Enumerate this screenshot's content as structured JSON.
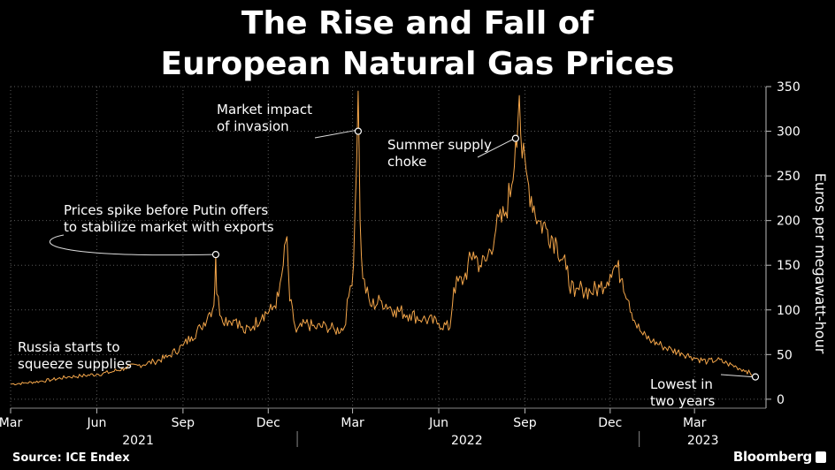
{
  "header": {
    "title_line1": "The Rise and Fall of",
    "title_line2": "European Natural Gas Prices"
  },
  "footer": {
    "source": "Source: ICE Endex",
    "brand": "Bloomberg"
  },
  "colors": {
    "background": "#000000",
    "series": "#f4a64a",
    "grid": "#5a5a5a",
    "text": "#ffffff"
  },
  "chart_data": {
    "type": "line",
    "ylabel": "Euros per megawatt-hour",
    "ylim": [
      -10,
      350
    ],
    "yticks": [
      0,
      50,
      100,
      150,
      200,
      250,
      300,
      350
    ],
    "xlim": [
      "2021-03-01",
      "2023-05-05"
    ],
    "month_ticks": [
      {
        "label": "Mar",
        "date": "2021-03-01"
      },
      {
        "label": "Jun",
        "date": "2021-06-01"
      },
      {
        "label": "Sep",
        "date": "2021-09-01"
      },
      {
        "label": "Dec",
        "date": "2021-12-01"
      },
      {
        "label": "Mar",
        "date": "2022-03-01"
      },
      {
        "label": "Jun",
        "date": "2022-06-01"
      },
      {
        "label": "Sep",
        "date": "2022-09-01"
      },
      {
        "label": "Dec",
        "date": "2022-12-01"
      },
      {
        "label": "Mar",
        "date": "2023-03-01"
      }
    ],
    "year_labels": [
      {
        "label": "2021",
        "date": "2021-07-15"
      },
      {
        "label": "2022",
        "date": "2022-07-01"
      },
      {
        "label": "2023",
        "date": "2023-03-10"
      }
    ],
    "year_separators": [
      "2022-01-01",
      "2023-01-01"
    ],
    "series": [
      {
        "values": [
          [
            "2021-03-01",
            17
          ],
          [
            "2021-03-15",
            18
          ],
          [
            "2021-04-01",
            20
          ],
          [
            "2021-04-15",
            22
          ],
          [
            "2021-05-01",
            25
          ],
          [
            "2021-05-15",
            26
          ],
          [
            "2021-06-01",
            28
          ],
          [
            "2021-06-15",
            30
          ],
          [
            "2021-07-01",
            35
          ],
          [
            "2021-07-15",
            38
          ],
          [
            "2021-08-01",
            42
          ],
          [
            "2021-08-15",
            47
          ],
          [
            "2021-09-01",
            60
          ],
          [
            "2021-09-10",
            70
          ],
          [
            "2021-09-20",
            80
          ],
          [
            "2021-09-28",
            95
          ],
          [
            "2021-10-04",
            105
          ],
          [
            "2021-10-06",
            162
          ],
          [
            "2021-10-07",
            118
          ],
          [
            "2021-10-12",
            92
          ],
          [
            "2021-10-20",
            88
          ],
          [
            "2021-10-28",
            90
          ],
          [
            "2021-11-05",
            75
          ],
          [
            "2021-11-15",
            82
          ],
          [
            "2021-11-25",
            95
          ],
          [
            "2021-12-05",
            100
          ],
          [
            "2021-12-12",
            115
          ],
          [
            "2021-12-17",
            150
          ],
          [
            "2021-12-21",
            182
          ],
          [
            "2021-12-24",
            110
          ],
          [
            "2021-12-31",
            75
          ],
          [
            "2022-01-10",
            85
          ],
          [
            "2022-01-20",
            80
          ],
          [
            "2022-02-01",
            82
          ],
          [
            "2022-02-10",
            77
          ],
          [
            "2022-02-20",
            80
          ],
          [
            "2022-02-25",
            115
          ],
          [
            "2022-03-02",
            150
          ],
          [
            "2022-03-07",
            345
          ],
          [
            "2022-03-09",
            200
          ],
          [
            "2022-03-12",
            135
          ],
          [
            "2022-03-20",
            105
          ],
          [
            "2022-04-01",
            110
          ],
          [
            "2022-04-15",
            100
          ],
          [
            "2022-05-01",
            95
          ],
          [
            "2022-05-15",
            90
          ],
          [
            "2022-06-01",
            85
          ],
          [
            "2022-06-13",
            80
          ],
          [
            "2022-06-17",
            125
          ],
          [
            "2022-06-28",
            135
          ],
          [
            "2022-07-08",
            165
          ],
          [
            "2022-07-15",
            150
          ],
          [
            "2022-07-22",
            155
          ],
          [
            "2022-08-01",
            190
          ],
          [
            "2022-08-10",
            205
          ],
          [
            "2022-08-18",
            240
          ],
          [
            "2022-08-22",
            290
          ],
          [
            "2022-08-26",
            340
          ],
          [
            "2022-08-29",
            270
          ],
          [
            "2022-09-05",
            240
          ],
          [
            "2022-09-15",
            200
          ],
          [
            "2022-09-25",
            190
          ],
          [
            "2022-10-05",
            175
          ],
          [
            "2022-10-15",
            145
          ],
          [
            "2022-10-24",
            115
          ],
          [
            "2022-11-01",
            125
          ],
          [
            "2022-11-10",
            120
          ],
          [
            "2022-11-20",
            125
          ],
          [
            "2022-12-01",
            140
          ],
          [
            "2022-12-07",
            150
          ],
          [
            "2022-12-14",
            135
          ],
          [
            "2022-12-21",
            110
          ],
          [
            "2022-12-28",
            85
          ],
          [
            "2023-01-05",
            72
          ],
          [
            "2023-01-15",
            65
          ],
          [
            "2023-01-25",
            60
          ],
          [
            "2023-02-05",
            55
          ],
          [
            "2023-02-15",
            52
          ],
          [
            "2023-02-25",
            48
          ],
          [
            "2023-03-05",
            45
          ],
          [
            "2023-03-15",
            42
          ],
          [
            "2023-03-25",
            44
          ],
          [
            "2023-04-05",
            40
          ],
          [
            "2023-04-15",
            36
          ],
          [
            "2023-04-25",
            32
          ],
          [
            "2023-05-05",
            25
          ]
        ]
      }
    ],
    "annotations": [
      {
        "text": [
          "Russia starts to",
          "squeeze supplies"
        ],
        "date": null,
        "value": null
      },
      {
        "text": [
          "Prices spike before Putin offers",
          "to stabilize market with exports"
        ],
        "date": "2021-10-06",
        "value": 162
      },
      {
        "text": [
          "Market impact",
          "of invasion"
        ],
        "date": "2022-03-07",
        "value": 300
      },
      {
        "text": [
          "Summer supply",
          "choke"
        ],
        "date": "2022-08-22",
        "value": 292
      },
      {
        "text": [
          "Lowest in",
          "two years"
        ],
        "date": "2023-05-05",
        "value": 25
      }
    ]
  }
}
